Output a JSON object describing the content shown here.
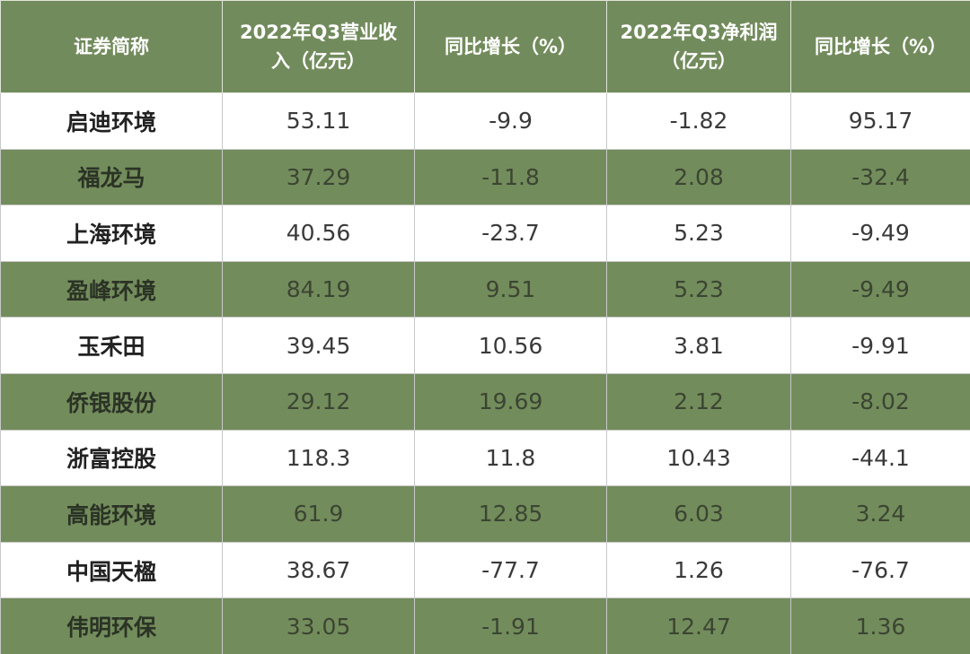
{
  "table": {
    "header": [
      "证券简称",
      "2022年Q3营业收入（亿元）",
      "同比增长（%）",
      "2022年Q3净利润（亿元）",
      "同比增长（%）"
    ],
    "rows": [
      [
        "启迪环境",
        "53.11",
        "-9.9",
        "-1.82",
        "95.17"
      ],
      [
        "福龙马",
        "37.29",
        "-11.8",
        "2.08",
        "-32.4"
      ],
      [
        "上海环境",
        "40.56",
        "-23.7",
        "5.23",
        "-9.49"
      ],
      [
        "盈峰环境",
        "84.19",
        "9.51",
        "5.23",
        "-9.49"
      ],
      [
        "玉禾田",
        "39.45",
        "10.56",
        "3.81",
        "-9.91"
      ],
      [
        "侨银股份",
        "29.12",
        "19.69",
        "2.12",
        "-8.02"
      ],
      [
        "浙富控股",
        "118.3",
        "11.8",
        "10.43",
        "-44.1"
      ],
      [
        "高能环境",
        "61.9",
        "12.85",
        "6.03",
        "3.24"
      ],
      [
        "中国天楹",
        "38.67",
        "-77.7",
        "1.26",
        "-76.7"
      ],
      [
        "伟明环保",
        "33.05",
        "-1.91",
        "12.47",
        "1.36"
      ]
    ]
  }
}
